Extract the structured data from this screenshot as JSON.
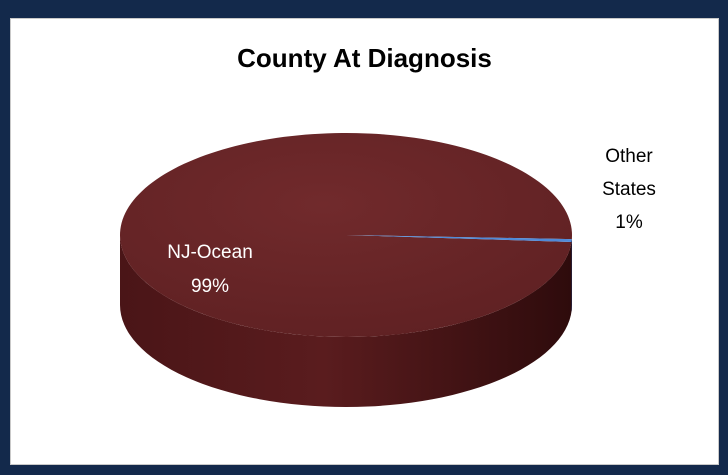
{
  "chart_data": {
    "type": "pie",
    "title": "County At Diagnosis",
    "slices": [
      {
        "label": "NJ-Ocean",
        "value": 99,
        "value_label": "99%",
        "color": "#6b2527"
      },
      {
        "label": "Other",
        "label_line2": "States",
        "value": 1,
        "value_label": "1%",
        "color": "#4f8ad8"
      }
    ],
    "three_d": true,
    "legend": "none"
  },
  "colors": {
    "background": "#13294b",
    "panel": "#ffffff"
  }
}
